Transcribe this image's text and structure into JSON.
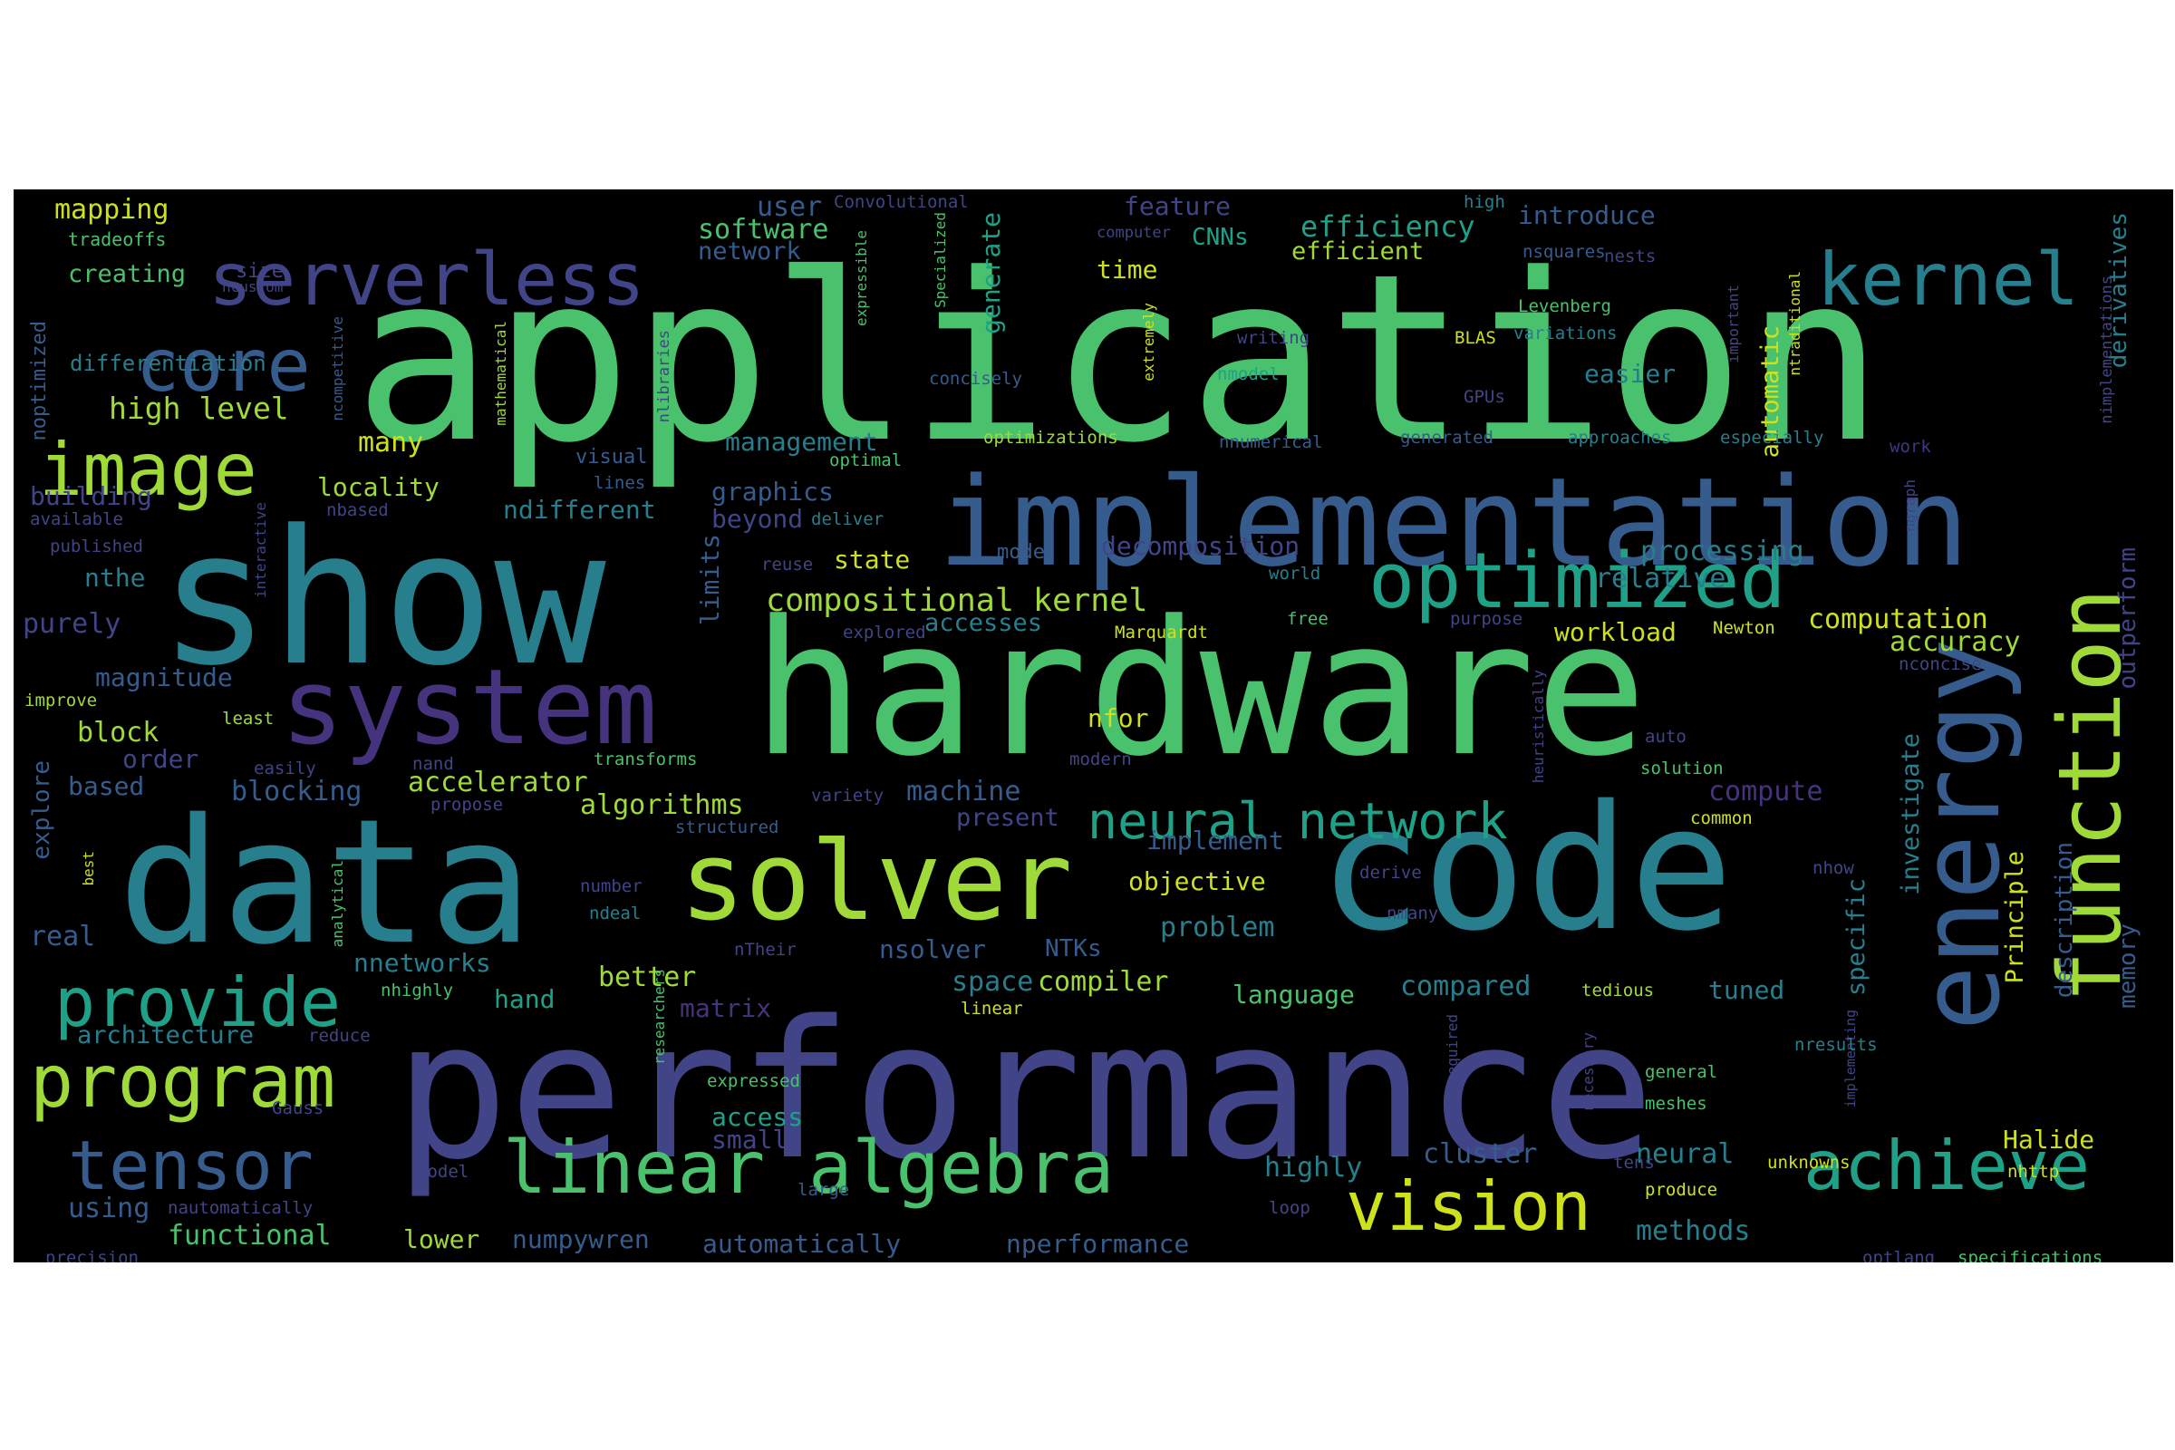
{
  "wordcloud": {
    "background": "#000000",
    "palette": {
      "purple": "#46337e",
      "indigo": "#414487",
      "blue": "#365c8d",
      "teal": "#277f8e",
      "green": "#1fa187",
      "emerald": "#4ac16d",
      "lime": "#a0da39",
      "yellow": "#cde11d"
    },
    "words": {
      "application": "application",
      "hardware": "hardware",
      "performance": "performance",
      "show": "show",
      "data": "data",
      "code": "code",
      "implementation": "implementation",
      "energy": "energy",
      "function": "function",
      "system": "system",
      "solver": "solver",
      "linear_algebra": "linear algebra",
      "serverless": "serverless",
      "kernel": "kernel",
      "optimized": "optimized",
      "image": "image",
      "core": "core",
      "program": "program",
      "provide": "provide",
      "tensor": "tensor",
      "achieve": "achieve",
      "vision": "vision",
      "neural_network": "neural network",
      "compositional_kernel": "compositional kernel",
      "high_level": "high level",
      "mapping": "mapping",
      "noptimized": "noptimized",
      "tradeoffs": "tradeoffs",
      "creating": "creating",
      "differentiation": "differentiation",
      "size": "size",
      "ncustom": "ncustom",
      "convolutional": "Convolutional",
      "user": "user",
      "software": "software",
      "network": "network",
      "expressible": "expressible",
      "specialized": "Specialized",
      "generate": "generate",
      "feature": "feature",
      "computer": "computer",
      "time": "time",
      "cnns": "CNNs",
      "efficiency": "efficiency",
      "efficient": "efficient",
      "high": "high",
      "introduce": "introduce",
      "nsquares": "nsquares",
      "nests": "nests",
      "derivatives": "derivatives",
      "nimplementations": "nimplementations",
      "levenberg": "Levenberg",
      "variations": "variations",
      "writing": "writing",
      "blas": "BLAS",
      "easier": "easier",
      "important": "important",
      "ntraditional": "ntraditional",
      "automatic": "automatic",
      "extremely": "extremely",
      "nmodel": "nmodel",
      "concisely": "concisely",
      "nlibraries": "nlibraries",
      "mathematical": "mathematical",
      "ncompetitive": "ncompetitive",
      "gpus": "GPUs",
      "many": "many",
      "management": "management",
      "optimizations": "optimizations",
      "nnumerical": "nnumerical",
      "generated": "generated",
      "approaches": "approaches",
      "especially": "especially",
      "work": "work",
      "visual": "visual",
      "optimal": "optimal",
      "lines": "lines",
      "building": "building",
      "locality": "locality",
      "graphics": "graphics",
      "available": "available",
      "nbased": "nbased",
      "ndifferent": "ndifferent",
      "beyond": "beyond",
      "deliver": "deliver",
      "published": "published",
      "ngraph": "ngraph",
      "interactive": "interactive",
      "nthe": "nthe",
      "limits": "limits",
      "reuse": "reuse",
      "state": "state",
      "mode": "mode",
      "decomposition": "decomposition",
      "world": "world",
      "processing": "processing",
      "relative": "relative",
      "outperform": "outperform",
      "purely": "purely",
      "accesses": "accesses",
      "explored": "explored",
      "marquardt": "Marquardt",
      "free": "free",
      "purpose": "purpose",
      "newton": "Newton",
      "computation": "computation",
      "workload": "workload",
      "accuracy": "accuracy",
      "magnitude": "magnitude",
      "heuristically": "heuristically",
      "nconcise": "nconcise",
      "improve": "improve",
      "least": "least",
      "block": "block",
      "nfor": "nfor",
      "auto": "auto",
      "order": "order",
      "easily": "easily",
      "explore": "explore",
      "nand": "nand",
      "transforms": "transforms",
      "modern": "modern",
      "investigate": "investigate",
      "solution": "solution",
      "based": "based",
      "blocking": "blocking",
      "accelerator": "accelerator",
      "propose": "propose",
      "variety": "variety",
      "machine": "machine",
      "compute": "compute",
      "algorithms": "algorithms",
      "structured": "structured",
      "common": "common",
      "best": "best",
      "present": "present",
      "implement": "implement",
      "description": "description",
      "nhow": "nhow",
      "objective": "objective",
      "derive": "derive",
      "principle": "Principle",
      "number": "number",
      "analytical": "analytical",
      "ndeal": "ndeal",
      "nmany": "nmany",
      "real": "real",
      "problem": "problem",
      "ntheir": "nTheir",
      "ntks": "NTKs",
      "nsolver": "nsolver",
      "specific": "specific",
      "nnetworks": "nnetworks",
      "better": "better",
      "memory": "memory",
      "nhighly": "nhighly",
      "space": "space",
      "compiler": "compiler",
      "hand": "hand",
      "researchers": "researchers",
      "matrix": "matrix",
      "linear": "linear",
      "language": "language",
      "compared": "compared",
      "tedious": "tedious",
      "tuned": "tuned",
      "architecture": "architecture",
      "reduce": "reduce",
      "required": "required",
      "implementing": "implementing",
      "necessary": "necessary",
      "nresults": "nresults",
      "expressed": "expressed",
      "general": "general",
      "gauss": "Gauss",
      "access": "access",
      "meshes": "meshes",
      "small": "small",
      "halide": "Halide",
      "cluster": "cluster",
      "neural": "neural",
      "highly": "highly",
      "tens": "tens",
      "unknowns": "unknowns",
      "model": "model",
      "nhttp": "nhttp",
      "using": "using",
      "nautomatically": "nautomatically",
      "large": "large",
      "produce": "produce",
      "loop": "loop",
      "functional": "functional",
      "lower": "lower",
      "numpywren": "numpywren",
      "automatically": "automatically",
      "nperformance": "nperformance",
      "methods": "methods",
      "precision": "precision",
      "optlang": "optlang",
      "specifications": "specifications"
    }
  }
}
